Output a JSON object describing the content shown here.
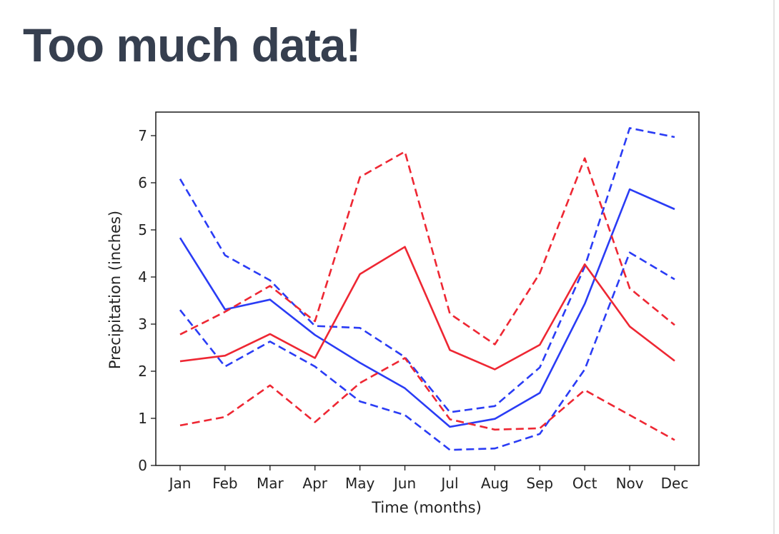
{
  "page": {
    "title": "Too much data!"
  },
  "chart_data": {
    "type": "line",
    "title": "",
    "xlabel": "Time (months)",
    "ylabel": "Precipitation (inches)",
    "ylim": [
      0,
      7.5
    ],
    "yticks": [
      0,
      1,
      2,
      3,
      4,
      5,
      6,
      7
    ],
    "categories": [
      "Jan",
      "Feb",
      "Mar",
      "Apr",
      "May",
      "Jun",
      "Jul",
      "Aug",
      "Sep",
      "Oct",
      "Nov",
      "Dec"
    ],
    "grid": false,
    "legend": "none",
    "series": [
      {
        "color": "#2a3cf5",
        "style": "solid",
        "values": [
          4.83,
          3.31,
          3.52,
          2.77,
          2.18,
          1.64,
          0.82,
          0.99,
          1.54,
          3.43,
          5.86,
          5.44
        ]
      },
      {
        "color": "#2a3cf5",
        "style": "dashed",
        "values": [
          6.08,
          4.46,
          3.93,
          2.96,
          2.92,
          2.3,
          1.13,
          1.26,
          2.08,
          4.22,
          7.16,
          6.97
        ]
      },
      {
        "color": "#2a3cf5",
        "style": "dashed",
        "values": [
          3.3,
          2.1,
          2.63,
          2.1,
          1.36,
          1.07,
          0.33,
          0.36,
          0.67,
          2.04,
          4.52,
          3.95
        ]
      },
      {
        "color": "#ee2733",
        "style": "solid",
        "values": [
          2.21,
          2.33,
          2.79,
          2.28,
          4.06,
          4.64,
          2.45,
          2.04,
          2.56,
          4.27,
          2.95,
          2.22
        ]
      },
      {
        "color": "#ee2733",
        "style": "dashed",
        "values": [
          2.78,
          3.26,
          3.81,
          3.06,
          6.12,
          6.66,
          3.22,
          2.57,
          4.08,
          6.52,
          3.76,
          2.98
        ]
      },
      {
        "color": "#ee2733",
        "style": "dashed",
        "values": [
          0.85,
          1.03,
          1.7,
          0.92,
          1.75,
          2.28,
          0.98,
          0.76,
          0.79,
          1.6,
          1.07,
          0.54
        ]
      }
    ]
  }
}
